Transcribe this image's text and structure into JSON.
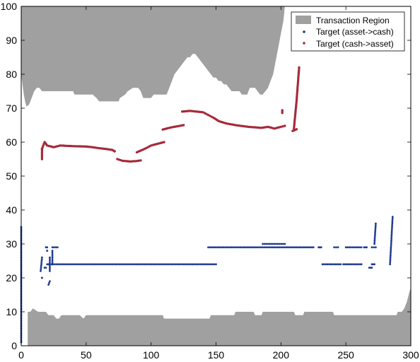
{
  "chart_data": {
    "type": "scatter",
    "title": "",
    "xlabel": "",
    "ylabel": "",
    "xlim": [
      0,
      300
    ],
    "ylim": [
      0,
      100
    ],
    "xticks": [
      0,
      50,
      100,
      150,
      200,
      250,
      300
    ],
    "yticks": [
      0,
      10,
      20,
      30,
      40,
      50,
      60,
      70,
      80,
      90,
      100
    ],
    "grid": false,
    "legend_position": "top-right",
    "colors": {
      "region": "#a0a0a0",
      "asset_to_cash": "#1f3a8f",
      "cash_to_asset": "#a52a3a"
    },
    "region": {
      "name": "Transaction Region",
      "upper": [
        [
          0,
          100
        ],
        [
          0,
          80
        ],
        [
          1,
          77
        ],
        [
          2,
          74
        ],
        [
          3,
          72
        ],
        [
          4,
          70.5
        ],
        [
          6,
          71
        ],
        [
          8,
          73
        ],
        [
          10,
          75
        ],
        [
          12,
          76
        ],
        [
          14,
          76
        ],
        [
          16,
          75
        ],
        [
          40,
          75
        ],
        [
          41,
          74
        ],
        [
          45,
          74
        ],
        [
          55,
          74
        ],
        [
          58,
          73
        ],
        [
          60,
          72
        ],
        [
          75,
          72
        ],
        [
          76,
          73
        ],
        [
          80,
          74
        ],
        [
          82,
          75
        ],
        [
          84,
          75.5
        ],
        [
          86,
          76
        ],
        [
          88,
          76
        ],
        [
          90,
          76
        ],
        [
          92,
          75
        ],
        [
          94,
          73
        ],
        [
          96,
          73
        ],
        [
          100,
          73
        ],
        [
          102,
          74
        ],
        [
          112,
          74
        ],
        [
          114,
          76
        ],
        [
          116,
          78
        ],
        [
          118,
          80
        ],
        [
          120,
          81
        ],
        [
          122,
          82
        ],
        [
          124,
          83
        ],
        [
          126,
          84
        ],
        [
          128,
          85
        ],
        [
          130,
          85
        ],
        [
          132,
          86
        ],
        [
          134,
          86
        ],
        [
          136,
          85
        ],
        [
          138,
          84
        ],
        [
          140,
          83
        ],
        [
          142,
          82
        ],
        [
          144,
          81
        ],
        [
          146,
          80
        ],
        [
          148,
          79
        ],
        [
          150,
          79
        ],
        [
          152,
          78
        ],
        [
          154,
          78
        ],
        [
          156,
          77
        ],
        [
          158,
          77
        ],
        [
          160,
          76
        ],
        [
          162,
          75
        ],
        [
          164,
          75
        ],
        [
          166,
          75
        ],
        [
          168,
          75
        ],
        [
          170,
          74
        ],
        [
          172,
          74
        ],
        [
          174,
          74
        ],
        [
          176,
          76
        ],
        [
          178,
          76
        ],
        [
          180,
          76
        ],
        [
          182,
          75
        ],
        [
          184,
          74
        ],
        [
          186,
          74
        ],
        [
          188,
          75
        ],
        [
          190,
          76
        ],
        [
          192,
          78
        ],
        [
          194,
          80
        ],
        [
          196,
          84
        ],
        [
          198,
          88
        ],
        [
          200,
          92
        ],
        [
          202,
          96
        ],
        [
          203,
          100
        ]
      ],
      "lower": [
        [
          5,
          0
        ],
        [
          5,
          10
        ],
        [
          7,
          10
        ],
        [
          9,
          11
        ],
        [
          11,
          10.5
        ],
        [
          13,
          10
        ],
        [
          15,
          10
        ],
        [
          17,
          10
        ],
        [
          19,
          10
        ],
        [
          21,
          9
        ],
        [
          25,
          9
        ],
        [
          27,
          8
        ],
        [
          29,
          8
        ],
        [
          31,
          9
        ],
        [
          33,
          9
        ],
        [
          45,
          9
        ],
        [
          48,
          8
        ],
        [
          50,
          9
        ],
        [
          60,
          9
        ],
        [
          90,
          9
        ],
        [
          109,
          9
        ],
        [
          110,
          8
        ],
        [
          145,
          8
        ],
        [
          146,
          9
        ],
        [
          150,
          9
        ],
        [
          164,
          9
        ],
        [
          165,
          10
        ],
        [
          179,
          10
        ],
        [
          180,
          9
        ],
        [
          185,
          9
        ],
        [
          186,
          10
        ],
        [
          210,
          10
        ],
        [
          211,
          9
        ],
        [
          217,
          9
        ],
        [
          218,
          10
        ],
        [
          240,
          10
        ],
        [
          241,
          9
        ],
        [
          250,
          9
        ],
        [
          289,
          9
        ],
        [
          290,
          10
        ],
        [
          293,
          10
        ],
        [
          295,
          11
        ],
        [
          297,
          13
        ],
        [
          299,
          16
        ],
        [
          300,
          17
        ],
        [
          300,
          0
        ]
      ]
    },
    "series": [
      {
        "name": "Target (asset->cash)",
        "color": "#1f3a8f",
        "segments": [
          [
            [
              0,
              1
            ],
            [
              0,
              35
            ]
          ],
          [
            [
              15,
              22
            ],
            [
              16,
              26
            ]
          ],
          [
            [
              16,
              20
            ],
            [
              16,
              20
            ]
          ],
          [
            [
              18,
              23
            ],
            [
              19,
              23
            ]
          ],
          [
            [
              19,
              29
            ],
            [
              20,
              29
            ]
          ],
          [
            [
              20,
              28
            ],
            [
              20,
              28
            ]
          ],
          [
            [
              20,
              24
            ],
            [
              21,
              24
            ]
          ],
          [
            [
              21,
              18
            ],
            [
              22,
              19
            ]
          ],
          [
            [
              22,
              22
            ],
            [
              22,
              26
            ]
          ],
          [
            [
              22,
              24
            ],
            [
              150,
              24
            ]
          ],
          [
            [
              24,
              24
            ],
            [
              24,
              28
            ]
          ],
          [
            [
              24,
              29
            ],
            [
              28,
              29
            ]
          ],
          [
            [
              144,
              29
            ],
            [
              225,
              29
            ]
          ],
          [
            [
              186,
              30
            ],
            [
              203,
              30
            ]
          ],
          [
            [
              229,
              29
            ],
            [
              231,
              29
            ]
          ],
          [
            [
              232,
              24
            ],
            [
              246,
              24
            ]
          ],
          [
            [
              241,
              29
            ],
            [
              244,
              29
            ]
          ],
          [
            [
              248,
              24
            ],
            [
              262,
              24
            ]
          ],
          [
            [
              250,
              29
            ],
            [
              262,
              29
            ]
          ],
          [
            [
              264,
              29
            ],
            [
              266,
              29
            ]
          ],
          [
            [
              268,
              23
            ],
            [
              270,
              23
            ]
          ],
          [
            [
              270,
              29
            ],
            [
              273,
              29
            ]
          ],
          [
            [
              270,
              24
            ],
            [
              272,
              24
            ]
          ],
          [
            [
              272,
              30
            ],
            [
              273,
              36
            ]
          ],
          [
            [
              284,
              24
            ],
            [
              286,
              38
            ]
          ]
        ]
      },
      {
        "name": "Target (cash->asset)",
        "color": "#a52a3a",
        "segments": [
          [
            [
              16,
              55
            ],
            [
              16,
              58
            ]
          ],
          [
            [
              16,
              58
            ],
            [
              18,
              60
            ],
            [
              20,
              59
            ],
            [
              25,
              58.5
            ],
            [
              30,
              59
            ],
            [
              40,
              58.8
            ],
            [
              50,
              58.7
            ],
            [
              55,
              58.5
            ],
            [
              60,
              58.2
            ],
            [
              65,
              58
            ],
            [
              70,
              57.7
            ],
            [
              72,
              57.3
            ]
          ],
          [
            [
              74,
              55
            ],
            [
              78,
              54.5
            ],
            [
              84,
              54.3
            ],
            [
              88,
              54.4
            ],
            [
              92,
              54.6
            ]
          ],
          [
            [
              89,
              57
            ],
            [
              95,
              58
            ],
            [
              100,
              59
            ],
            [
              105,
              59.5
            ],
            [
              110,
              60
            ]
          ],
          [
            [
              109,
              63.7
            ],
            [
              115,
              64.3
            ],
            [
              125,
              65
            ]
          ],
          [
            [
              124,
              69
            ],
            [
              130,
              69.2
            ],
            [
              140,
              68.8
            ],
            [
              144,
              68
            ],
            [
              148,
              67.2
            ],
            [
              152,
              66.2
            ],
            [
              158,
              65.5
            ],
            [
              165,
              65
            ],
            [
              175,
              64.5
            ],
            [
              185,
              64.2
            ],
            [
              190,
              64.5
            ],
            [
              195,
              64
            ],
            [
              200,
              64.5
            ],
            [
              203,
              64.8
            ]
          ],
          [
            [
              201,
              68.6
            ],
            [
              201,
              69.4
            ]
          ],
          [
            [
              209,
              63.3
            ],
            [
              212,
              63.8
            ]
          ],
          [
            [
              210,
              64
            ],
            [
              211,
              68
            ],
            [
              212,
              72
            ],
            [
              213,
              77
            ],
            [
              214,
              82
            ]
          ]
        ]
      }
    ]
  }
}
